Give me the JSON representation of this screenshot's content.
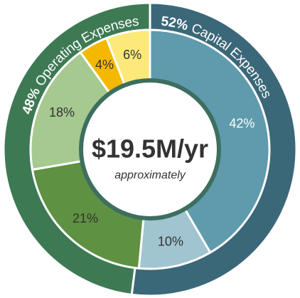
{
  "chart_data": {
    "type": "donut",
    "center_label": "$19.5M/yr",
    "center_sublabel": "approximately",
    "rings": [
      {
        "categories": [
          "Capital Expenses",
          "Operating Expenses"
        ],
        "values": [
          52,
          48
        ],
        "value_labels": [
          "52%",
          "48%"
        ],
        "colors": [
          "#3b6878",
          "#3d7a54"
        ]
      },
      {
        "values": [
          42,
          10,
          21,
          18,
          4,
          6
        ],
        "value_labels": [
          "42%",
          "10%",
          "21%",
          "18%",
          "4%",
          "6%"
        ],
        "colors": [
          "#5f9bac",
          "#a0c4d0",
          "#5e9141",
          "#a5c98f",
          "#f5b800",
          "#fde97a"
        ],
        "label_colors": [
          "#ffffff",
          "#333333",
          "#333333",
          "#333333",
          "#333333",
          "#333333"
        ]
      }
    ]
  }
}
